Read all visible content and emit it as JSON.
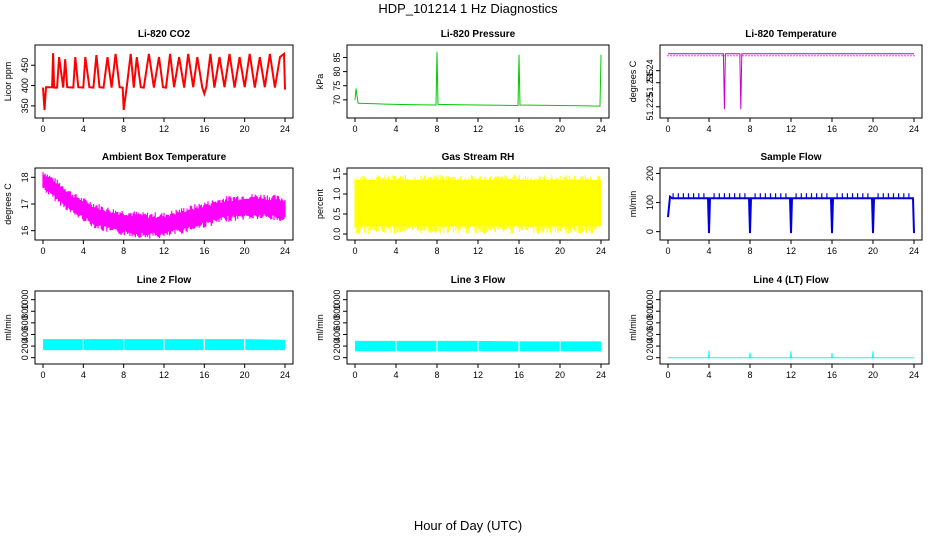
{
  "figure": {
    "title": "HDP_101214  1 Hz Diagnostics",
    "xlabel": "Hour of Day (UTC)"
  },
  "chart_data": [
    {
      "type": "line",
      "title": "Li-820 CO2",
      "ylabel": "Licor ppm",
      "color": "#ff0000",
      "xlim": [
        0,
        24
      ],
      "ylim": [
        330,
        490
      ],
      "xticks": [
        0,
        4,
        8,
        12,
        16,
        20,
        24
      ],
      "yticks": [
        350,
        400,
        450
      ],
      "series": [
        {
          "x": [
            0,
            0.15,
            0.3,
            0.9,
            1.0,
            1.1,
            1.4,
            1.6,
            2.0,
            2.2,
            2.4,
            3.0,
            3.2,
            3.5,
            4.0,
            4.2,
            4.6,
            5.0,
            5.3,
            5.6,
            6.0,
            6.4,
            6.8,
            7.2,
            7.6,
            7.9,
            8.0,
            8.3,
            8.7,
            9.0,
            9.3,
            9.7,
            10.0,
            10.5,
            11.0,
            11.5,
            11.9,
            12.2,
            12.6,
            13.0,
            13.5,
            14.0,
            14.4,
            14.9,
            15.3,
            15.8,
            16.0,
            16.2,
            16.6,
            17.0,
            17.5,
            18.0,
            18.5,
            19.0,
            19.5,
            20.0,
            20.5,
            21.0,
            21.5,
            22.0,
            22.5,
            23.0,
            23.5,
            23.9,
            24.0
          ],
          "y": [
            395,
            340,
            396,
            396,
            480,
            395,
            395,
            470,
            395,
            465,
            396,
            395,
            470,
            396,
            395,
            470,
            396,
            395,
            475,
            396,
            395,
            470,
            395,
            478,
            396,
            395,
            340,
            396,
            478,
            395,
            470,
            396,
            395,
            478,
            395,
            470,
            396,
            395,
            478,
            396,
            470,
            395,
            478,
            396,
            470,
            395,
            380,
            396,
            478,
            395,
            470,
            396,
            478,
            395,
            470,
            396,
            478,
            395,
            470,
            396,
            478,
            395,
            470,
            478,
            390
          ]
        }
      ]
    },
    {
      "type": "line",
      "title": "Li-820 Pressure",
      "ylabel": "kPa",
      "color": "#00cc00",
      "xlim": [
        0,
        24
      ],
      "ylim": [
        65,
        88
      ],
      "xticks": [
        0,
        4,
        8,
        12,
        16,
        20,
        24
      ],
      "yticks": [
        70,
        75,
        80,
        85
      ],
      "series": [
        {
          "x": [
            0,
            0.1,
            0.3,
            2,
            4,
            6,
            7.9,
            8.0,
            8.1,
            10,
            12,
            14,
            15.9,
            16.0,
            16.1,
            18,
            20,
            22,
            23.9,
            24.0
          ],
          "y": [
            70,
            74,
            68.8,
            68.6,
            68.4,
            68.3,
            68.2,
            87,
            68.4,
            68.3,
            68.2,
            68.1,
            68.0,
            86,
            68.2,
            68.1,
            68.0,
            67.9,
            67.8,
            86
          ]
        }
      ]
    },
    {
      "type": "line",
      "title": "Li-820 Temperature",
      "ylabel": "degrees C",
      "color": "#cc00cc",
      "xlim": [
        0,
        24
      ],
      "ylim": [
        51.222,
        51.249
      ],
      "xticks": [
        0,
        4,
        8,
        12,
        16,
        20,
        24
      ],
      "yticks": [
        51.225,
        51.235,
        51.24
      ],
      "series": [
        {
          "x": [
            0,
            5.4,
            5.5,
            5.6,
            7.0,
            7.1,
            7.2,
            12,
            18,
            24
          ],
          "y": [
            51.247,
            51.247,
            51.224,
            51.247,
            51.247,
            51.224,
            51.247,
            51.247,
            51.247,
            51.247
          ]
        }
      ]
    },
    {
      "type": "line",
      "title": "Ambient Box Temperature",
      "ylabel": "degrees C",
      "color": "#ff00ff",
      "xlim": [
        0,
        24
      ],
      "ylim": [
        15.8,
        18.2
      ],
      "xticks": [
        0,
        4,
        8,
        12,
        16,
        20,
        24
      ],
      "yticks": [
        16.0,
        17.0,
        18.0
      ],
      "series": [
        {
          "x": [
            0,
            1,
            2,
            3,
            4,
            5,
            6,
            7,
            8,
            9,
            10,
            11,
            12,
            13,
            14,
            15,
            16,
            17,
            18,
            19,
            20,
            21,
            22,
            23,
            24
          ],
          "y": [
            17.9,
            17.6,
            17.3,
            17.0,
            16.8,
            16.6,
            16.45,
            16.35,
            16.3,
            16.25,
            16.2,
            16.2,
            16.2,
            16.3,
            16.4,
            16.5,
            16.6,
            16.7,
            16.8,
            16.85,
            16.9,
            16.9,
            16.9,
            16.85,
            16.8
          ],
          "band": [
            0.35,
            0.4,
            0.4,
            0.4,
            0.4,
            0.45,
            0.45,
            0.45,
            0.45,
            0.45,
            0.45,
            0.45,
            0.45,
            0.45,
            0.45,
            0.45,
            0.45,
            0.45,
            0.45,
            0.45,
            0.45,
            0.45,
            0.45,
            0.45,
            0.45
          ]
        }
      ]
    },
    {
      "type": "line",
      "title": "Gas Stream RH",
      "ylabel": "percent",
      "color": "#ffff00",
      "xlim": [
        0,
        24
      ],
      "ylim": [
        -0.05,
        1.55
      ],
      "xticks": [
        0,
        4,
        8,
        12,
        16,
        20,
        24
      ],
      "yticks": [
        0.0,
        0.5,
        1.0,
        1.5
      ],
      "series": [
        {
          "x": [
            0,
            24
          ],
          "lower": [
            0.2,
            0.2
          ],
          "upper": [
            1.35,
            1.35
          ]
        }
      ]
    },
    {
      "type": "line",
      "title": "Sample Flow",
      "ylabel": "ml/min",
      "color": "#0000dd",
      "xlim": [
        0,
        24
      ],
      "ylim": [
        -15,
        205
      ],
      "xticks": [
        0,
        4,
        8,
        12,
        16,
        20,
        24
      ],
      "yticks": [
        0,
        100,
        200
      ],
      "series": [
        {
          "x": [
            0,
            0.2,
            0.4,
            3.9,
            4.0,
            4.1,
            7.9,
            8.0,
            8.1,
            11.9,
            12.0,
            12.1,
            15.9,
            16.0,
            16.1,
            19.9,
            20.0,
            20.1,
            23.9,
            24.0
          ],
          "y": [
            50,
            120,
            115,
            115,
            -5,
            115,
            115,
            -5,
            115,
            115,
            -5,
            115,
            115,
            -5,
            115,
            115,
            -5,
            115,
            115,
            -5
          ]
        }
      ]
    },
    {
      "type": "area",
      "title": "Line 2 Flow",
      "ylabel": "ml/min",
      "color": "#00ffff",
      "xlim": [
        0,
        24
      ],
      "ylim": [
        -40,
        1080
      ],
      "xticks": [
        0,
        4,
        8,
        12,
        16,
        20,
        24
      ],
      "yticks": [
        0,
        200,
        400,
        600,
        800,
        1000
      ],
      "series": [
        {
          "x": [
            0,
            4,
            8,
            12,
            16,
            20,
            24
          ],
          "lower": [
            130,
            130,
            130,
            130,
            130,
            130,
            130
          ],
          "upper": [
            320,
            320,
            320,
            320,
            320,
            320,
            310
          ]
        }
      ]
    },
    {
      "type": "area",
      "title": "Line 3 Flow",
      "ylabel": "ml/min",
      "color": "#00ffff",
      "xlim": [
        0,
        24
      ],
      "ylim": [
        -40,
        1080
      ],
      "xticks": [
        0,
        4,
        8,
        12,
        16,
        20,
        24
      ],
      "yticks": [
        0,
        200,
        400,
        600,
        800,
        1000
      ],
      "series": [
        {
          "x": [
            0,
            4,
            8,
            12,
            16,
            20,
            24
          ],
          "lower": [
            110,
            110,
            110,
            110,
            110,
            110,
            110
          ],
          "upper": [
            290,
            290,
            290,
            290,
            280,
            280,
            280
          ]
        }
      ]
    },
    {
      "type": "line",
      "title": "Line 4 (LT) Flow",
      "ylabel": "ml/min",
      "color": "#00ffff",
      "xlim": [
        0,
        24
      ],
      "ylim": [
        -40,
        1080
      ],
      "xticks": [
        0,
        4,
        8,
        12,
        16,
        20,
        24
      ],
      "yticks": [
        0,
        200,
        400,
        600,
        800,
        1000
      ],
      "series": [
        {
          "x": [
            0,
            3.95,
            4.0,
            4.05,
            7.95,
            8.0,
            8.05,
            11.95,
            12.0,
            12.05,
            15.95,
            16.0,
            16.05,
            19.95,
            20.0,
            20.05,
            24
          ],
          "y": [
            0,
            0,
            120,
            0,
            0,
            90,
            0,
            0,
            110,
            0,
            0,
            80,
            0,
            0,
            110,
            0,
            0
          ]
        }
      ]
    }
  ]
}
